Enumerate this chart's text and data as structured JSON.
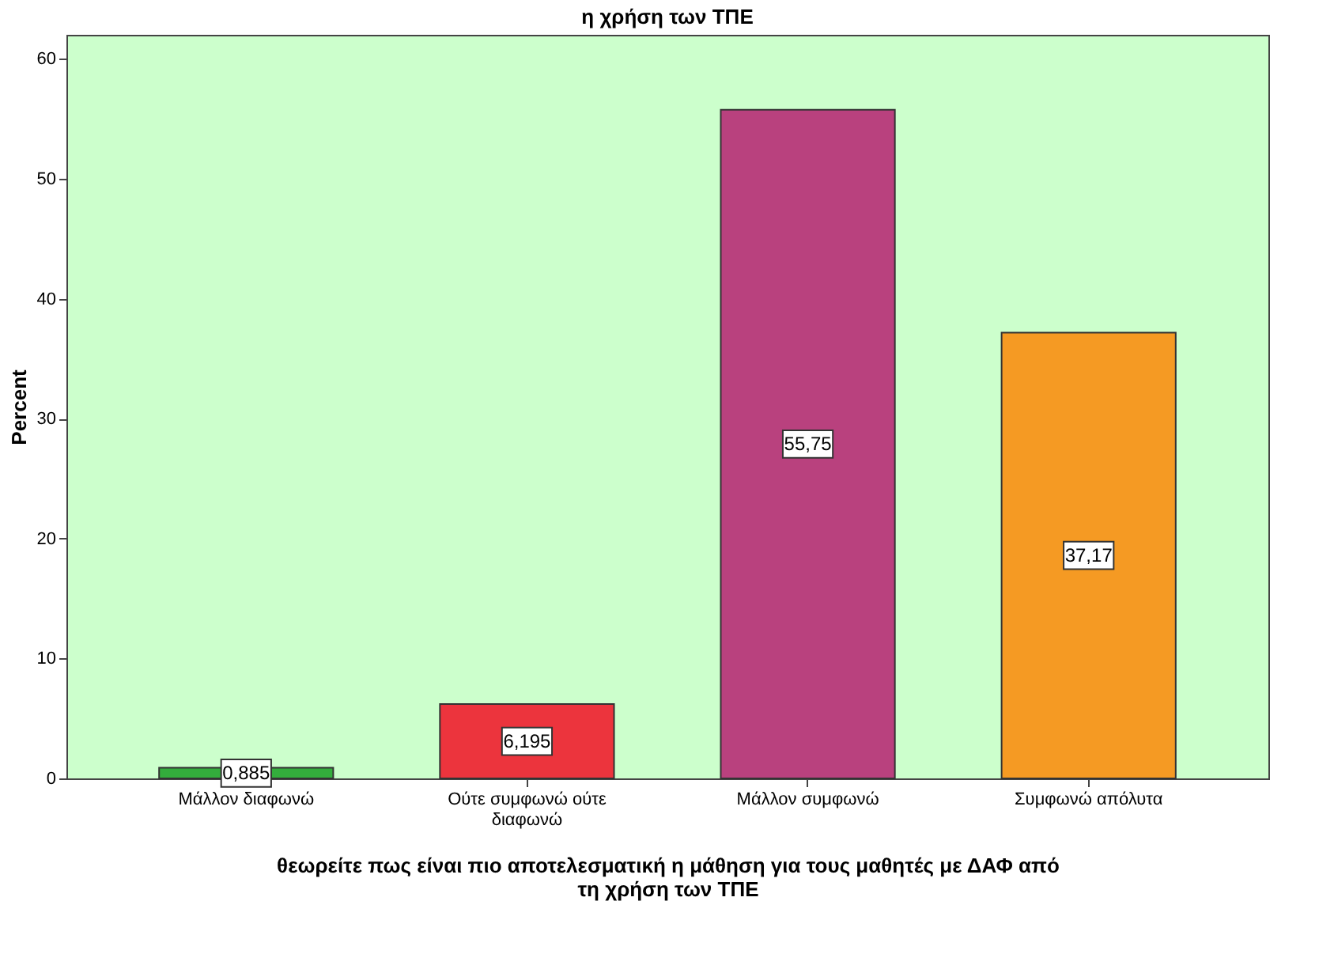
{
  "chart_data": {
    "type": "bar",
    "title": "η χρήση των ΤΠΕ",
    "xlabel": "θεωρείτε πως είναι πιο αποτελεσματική η μάθηση για τους μαθητές με ΔΑΦ από τη χρήση των ΤΠΕ",
    "ylabel": "Percent",
    "categories": [
      "Μάλλον διαφωνώ",
      "Ούτε συμφωνώ ούτε διαφωνώ",
      "Μάλλον συμφωνώ",
      "Συμφωνώ απόλυτα"
    ],
    "values": [
      0.885,
      6.195,
      55.75,
      37.17
    ],
    "value_labels": [
      "0,885",
      "6,195",
      "55,75",
      "37,17"
    ],
    "colors": [
      "#33ad3c",
      "#ec343d",
      "#b9417e",
      "#f59a23"
    ],
    "ylim": [
      0,
      62
    ],
    "yticks": [
      0,
      10,
      20,
      30,
      40,
      50,
      60
    ],
    "grid": false
  }
}
